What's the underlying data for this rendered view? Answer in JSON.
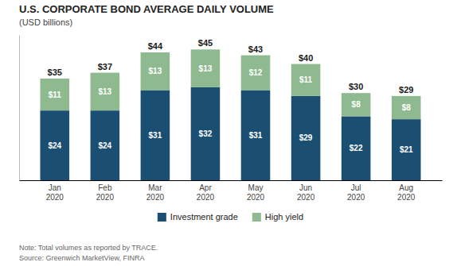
{
  "chart_data": {
    "type": "bar",
    "title": "U.S. CORPORATE BOND AVERAGE DAILY VOLUME",
    "subtitle": "(USD billions)",
    "categories": [
      "Jan\n2020",
      "Feb\n2020",
      "Mar\n2020",
      "Apr\n2020",
      "May\n2020",
      "Jun\n2020",
      "Jul\n2020",
      "Aug\n2020"
    ],
    "series": [
      {
        "name": "Investment grade",
        "color": "#1b4f72",
        "values": [
          24,
          24,
          31,
          32,
          31,
          29,
          22,
          21
        ],
        "value_labels": [
          "$24",
          "$24",
          "$31",
          "$32",
          "$31",
          "$29",
          "$22",
          "$21"
        ]
      },
      {
        "name": "High yield",
        "color": "#8fba8f",
        "values": [
          11,
          13,
          13,
          13,
          12,
          11,
          8,
          8
        ],
        "value_labels": [
          "$11",
          "$13",
          "$13",
          "$13",
          "$12",
          "$11",
          "$8",
          "$8"
        ]
      }
    ],
    "totals": {
      "values": [
        35,
        37,
        44,
        45,
        43,
        40,
        30,
        29
      ],
      "value_labels": [
        "$35",
        "$37",
        "$44",
        "$45",
        "$43",
        "$40",
        "$30",
        "$29"
      ]
    },
    "notes": [
      "Note: Total volumes as reported by TRACE.",
      "Source: Greenwich MarketView, FINRA"
    ],
    "stacked": true,
    "data_labels": true,
    "legend": "bottom",
    "grid": false,
    "tick_labels": "x",
    "ylim": [
      0,
      50
    ],
    "yticks": []
  }
}
